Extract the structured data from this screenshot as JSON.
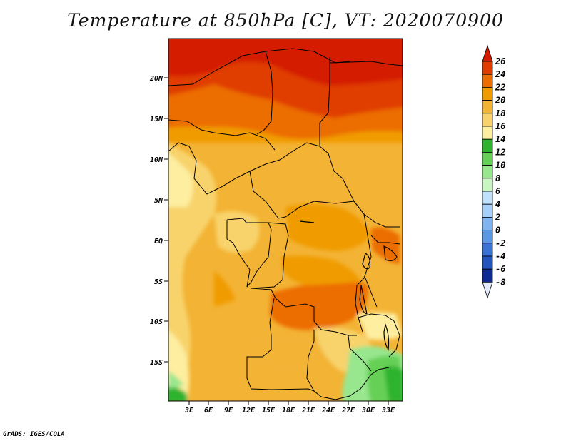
{
  "title": "Temperature at 850hPa [C], VT: 2020070900",
  "credit": "GrADS: IGES/COLA",
  "map": {
    "lon_ticks": [
      "3E",
      "6E",
      "9E",
      "12E",
      "15E",
      "18E",
      "21E",
      "24E",
      "27E",
      "30E",
      "33E"
    ],
    "lat_ticks": [
      "20N",
      "15N",
      "10N",
      "5N",
      "EQ",
      "5S",
      "10S",
      "15S"
    ]
  },
  "colorbar": {
    "labels": [
      "26",
      "24",
      "22",
      "20",
      "18",
      "16",
      "14",
      "12",
      "10",
      "8",
      "6",
      "4",
      "2",
      "0",
      "-2",
      "-4",
      "-6",
      "-8"
    ],
    "colors": [
      "#d41b00",
      "#e03c00",
      "#ec6d00",
      "#f09b00",
      "#f3b334",
      "#f8d36c",
      "#fdeea0",
      "#2fb32f",
      "#66d056",
      "#98e68e",
      "#c8f6c1",
      "#bfe1fb",
      "#a6d0fa",
      "#7fb4f0",
      "#5a98e3",
      "#3a73d4",
      "#2154bd",
      "#0c2a92",
      "#03106a"
    ],
    "top_color": "#d41b00",
    "bottom_color": "#e4ecfc"
  }
}
